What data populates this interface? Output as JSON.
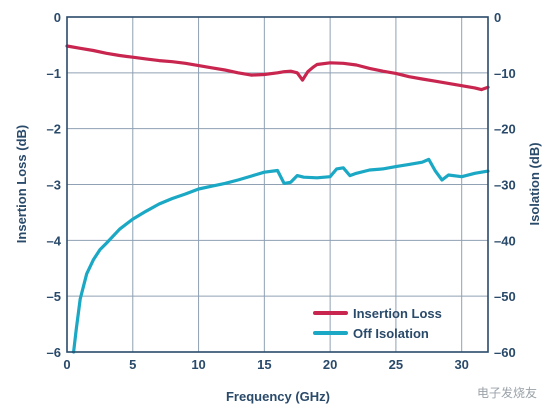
{
  "chart_data": {
    "type": "line",
    "title": "",
    "xlabel": "Frequency (GHz)",
    "ylabel": "Insertion Loss (dB)",
    "y2label": "Isolation (dB)",
    "xlim": [
      0,
      32
    ],
    "ylim": [
      -6,
      0
    ],
    "y2lim": [
      -60,
      0
    ],
    "xticks": [
      0,
      5,
      10,
      15,
      20,
      25,
      30
    ],
    "yticks": [
      0,
      -1,
      -2,
      -3,
      -4,
      -5,
      -6
    ],
    "y2ticks": [
      0,
      -10,
      -20,
      -30,
      -40,
      -50,
      -60
    ],
    "xtick_labels": [
      "0",
      "5",
      "10",
      "15",
      "20",
      "25",
      "30"
    ],
    "ytick_labels": [
      "0",
      "–1",
      "–2",
      "–3",
      "–4",
      "–5",
      "–6"
    ],
    "y2tick_labels": [
      "0",
      "–10",
      "–20",
      "–30",
      "–40",
      "–50",
      "–60"
    ],
    "grid": true,
    "legend_position": "bottom-right",
    "series": [
      {
        "name": "Insertion Loss",
        "axis": "left",
        "color": "#c8254f",
        "x": [
          0,
          1,
          2,
          3,
          4,
          5,
          6,
          7,
          8,
          9,
          10,
          11,
          12,
          13,
          14,
          15,
          16,
          16.5,
          17,
          17.5,
          17.9,
          18.3,
          18.7,
          19,
          20,
          21,
          22,
          23,
          24,
          25,
          26,
          27,
          28,
          29,
          30,
          31,
          31.5,
          32
        ],
        "y": [
          -0.52,
          -0.56,
          -0.6,
          -0.65,
          -0.69,
          -0.72,
          -0.75,
          -0.78,
          -0.8,
          -0.83,
          -0.87,
          -0.91,
          -0.95,
          -1.0,
          -1.04,
          -1.03,
          -1.0,
          -0.98,
          -0.97,
          -1.0,
          -1.13,
          -0.98,
          -0.9,
          -0.85,
          -0.82,
          -0.83,
          -0.86,
          -0.92,
          -0.97,
          -1.01,
          -1.07,
          -1.11,
          -1.15,
          -1.19,
          -1.23,
          -1.27,
          -1.3,
          -1.26
        ]
      },
      {
        "name": "Off Isolation",
        "axis": "right",
        "color": "#1aa8c4",
        "x": [
          0.5,
          0.7,
          1,
          1.5,
          2,
          2.5,
          3,
          4,
          5,
          6,
          7,
          8,
          9,
          10,
          11,
          12,
          13,
          14,
          15,
          16,
          16.5,
          17,
          17.5,
          18,
          19,
          20,
          20.5,
          21,
          21.5,
          22,
          23,
          24,
          25,
          26,
          27,
          27.5,
          28,
          28.5,
          29,
          30,
          31,
          32
        ],
        "y": [
          -60,
          -56,
          -50.5,
          -46,
          -43.5,
          -41.7,
          -40.5,
          -38,
          -36.2,
          -34.8,
          -33.5,
          -32.5,
          -31.7,
          -30.8,
          -30.3,
          -29.8,
          -29.2,
          -28.5,
          -27.8,
          -27.5,
          -29.8,
          -29.6,
          -28.4,
          -28.7,
          -28.8,
          -28.6,
          -27.2,
          -27.0,
          -28.4,
          -28.0,
          -27.4,
          -27.2,
          -26.8,
          -26.4,
          -26.0,
          -25.5,
          -27.6,
          -29.2,
          -28.3,
          -28.6,
          -28.0,
          -27.6
        ]
      }
    ]
  },
  "watermark": "电子发烧友"
}
